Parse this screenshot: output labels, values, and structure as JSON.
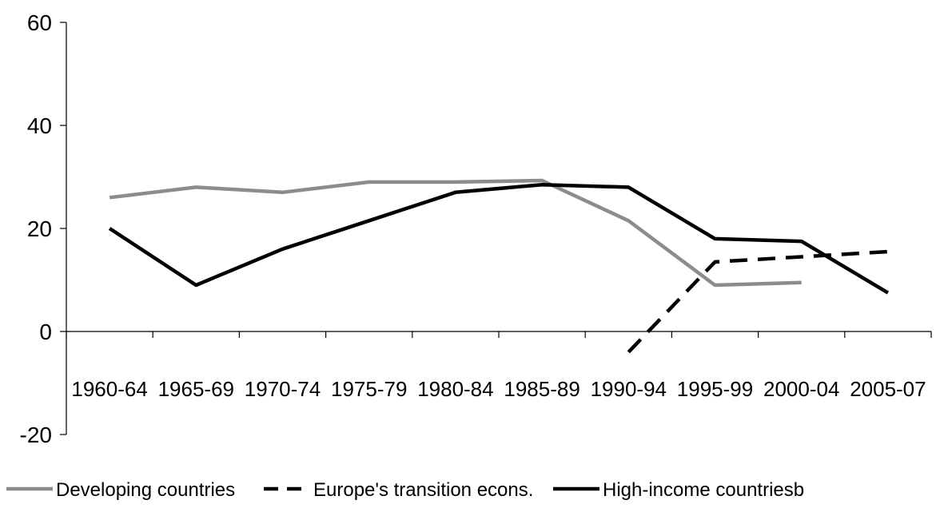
{
  "chart_data": {
    "type": "line",
    "title": "",
    "xlabel": "",
    "ylabel": "",
    "ylim": [
      -20,
      60
    ],
    "yticks": [
      "60",
      "40",
      "20",
      "0",
      "-20"
    ],
    "categories": [
      "1960-64",
      "1965-69",
      "1970-74",
      "1975-79",
      "1980-84",
      "1985-89",
      "1990-94",
      "1995-99",
      "2000-04",
      "2005-07"
    ],
    "grid": false,
    "legend_position": "bottom",
    "series": [
      {
        "name": "Developing countries",
        "color": "#8c8c8c",
        "dash": "solid",
        "values": [
          26,
          28,
          27,
          29,
          29,
          29.3,
          21.5,
          9,
          9.5,
          null
        ]
      },
      {
        "name": "Europe's transition econs.",
        "color": "#000000",
        "dash": "dashed",
        "values": [
          null,
          null,
          null,
          null,
          null,
          null,
          -4,
          13.5,
          14.5,
          15.5
        ]
      },
      {
        "name": "High-income countriesb",
        "color": "#000000",
        "dash": "solid",
        "values": [
          20,
          9,
          16,
          21.5,
          27,
          28.5,
          28,
          18,
          17.5,
          7.5
        ]
      }
    ]
  }
}
